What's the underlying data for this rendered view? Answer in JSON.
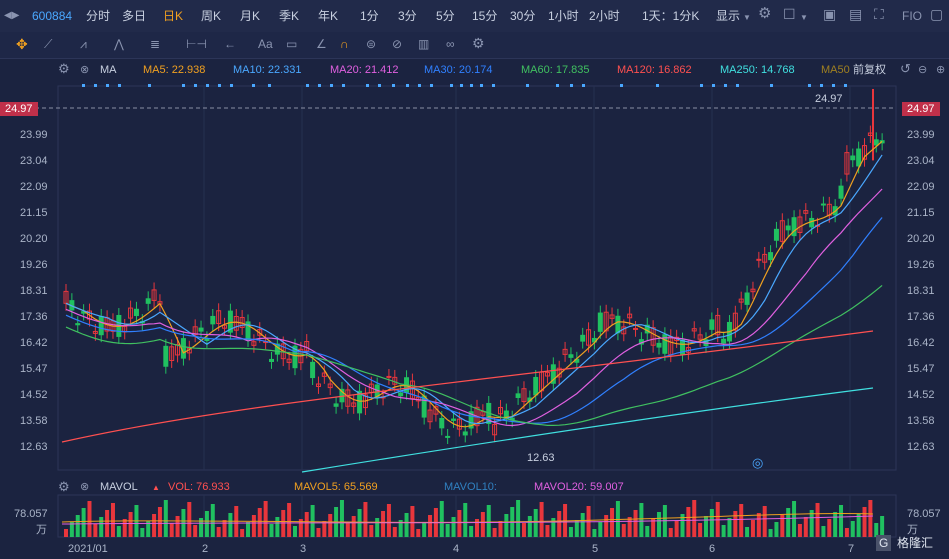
{
  "toolbar": {
    "code": "600884",
    "periods": [
      "分时",
      "多日",
      "日K",
      "周K",
      "月K",
      "季K",
      "年K",
      "1分",
      "3分",
      "5分",
      "15分",
      "30分",
      "1小时",
      "2小时"
    ],
    "active_period": "日K",
    "interval_select": "1天：1分K",
    "display": "显示",
    "fio": "FIO"
  },
  "draw_tools": {
    "text_tool": "Aa"
  },
  "ma_legend": {
    "label": "MA",
    "items": [
      {
        "text": "MA5: 22.938",
        "color": "#f0a020"
      },
      {
        "text": "MA10: 22.331",
        "color": "#4aa8ff"
      },
      {
        "text": "MA20: 21.412",
        "color": "#e060e0"
      },
      {
        "text": "MA30: 20.174",
        "color": "#3080ff"
      },
      {
        "text": "MA60: 17.835",
        "color": "#40c060"
      },
      {
        "text": "MA120: 16.862",
        "color": "#ff5050"
      },
      {
        "text": "MA250: 14.768",
        "color": "#40e0e0"
      },
      {
        "text": "MA50",
        "color": "#a08020"
      }
    ],
    "adjust": "前复权"
  },
  "price_axis": {
    "ticks": [
      "23.99",
      "23.04",
      "22.09",
      "21.15",
      "20.20",
      "19.26",
      "18.31",
      "17.36",
      "16.42",
      "15.47",
      "14.52",
      "13.58",
      "12.63"
    ],
    "current": "24.97",
    "high_label": "24.97",
    "low_label": "12.63"
  },
  "time_axis": [
    "2021/01",
    "2",
    "3",
    "4",
    "5",
    "6",
    "7"
  ],
  "vol_legend": {
    "label": "MAVOL",
    "vol": "VOL: 76.933",
    "mavol5": "MAVOL5: 65.569",
    "mavol10": "MAVOL10:",
    "mavol20": "MAVOL20: 59.007"
  },
  "vol_axis": {
    "left_value": "78.057",
    "left_unit": "万",
    "right_value": "78.057",
    "right_unit": "万"
  },
  "colors": {
    "up": "#e8363c",
    "down": "#20c060",
    "ma5": "#f0a020",
    "ma10": "#4aa8ff",
    "ma20": "#e060e0",
    "ma30": "#3080ff",
    "ma60": "#40c060",
    "ma120": "#ff5050",
    "ma250": "#40e0e0"
  },
  "watermark": "格隆汇"
}
